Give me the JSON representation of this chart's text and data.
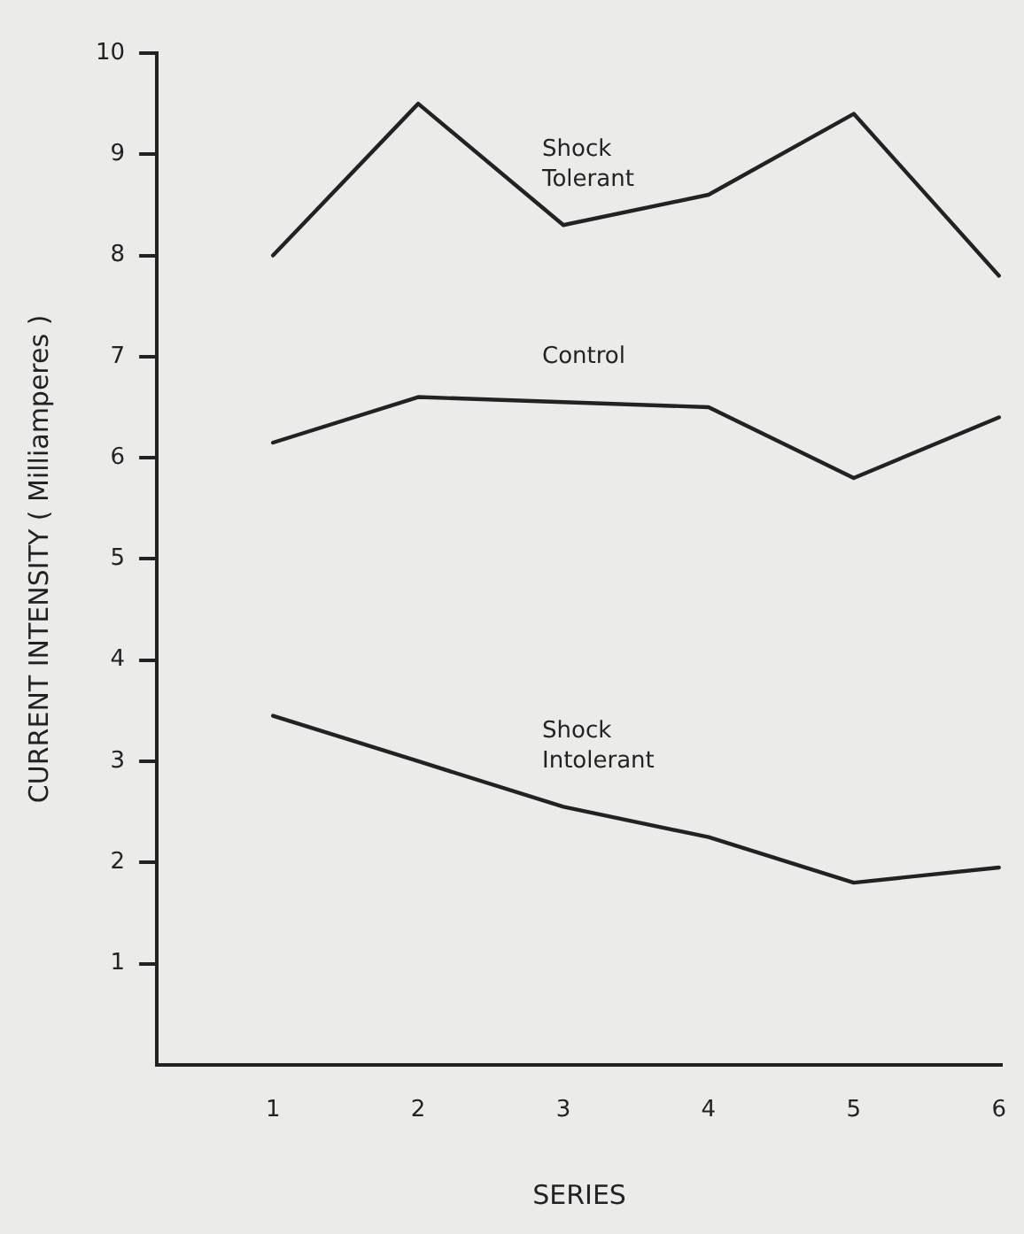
{
  "chart_data": {
    "type": "line",
    "xlabel": "SERIES",
    "ylabel": "CURRENT INTENSITY ( Milliamperes )",
    "x": [
      1,
      2,
      3,
      4,
      5,
      6
    ],
    "xlim": [
      0.2,
      6.02
    ],
    "xticks": [
      1,
      2,
      3,
      4,
      5,
      6
    ],
    "ylim": [
      0,
      10
    ],
    "yticks": [
      1,
      2,
      3,
      4,
      5,
      6,
      7,
      8,
      9,
      10
    ],
    "grid": false,
    "legend": false,
    "marker": "none",
    "line_style": "solid",
    "series": [
      {
        "name": "Shock Tolerant",
        "color": "#222222",
        "values": [
          8.0,
          9.5,
          8.3,
          8.6,
          9.4,
          7.8
        ]
      },
      {
        "name": "Control",
        "color": "#222222",
        "values": [
          6.15,
          6.6,
          6.55,
          6.5,
          5.8,
          6.4
        ]
      },
      {
        "name": "Shock Intolerant",
        "color": "#222222",
        "values": [
          3.45,
          3.0,
          2.55,
          2.25,
          1.8,
          1.95
        ]
      }
    ]
  }
}
